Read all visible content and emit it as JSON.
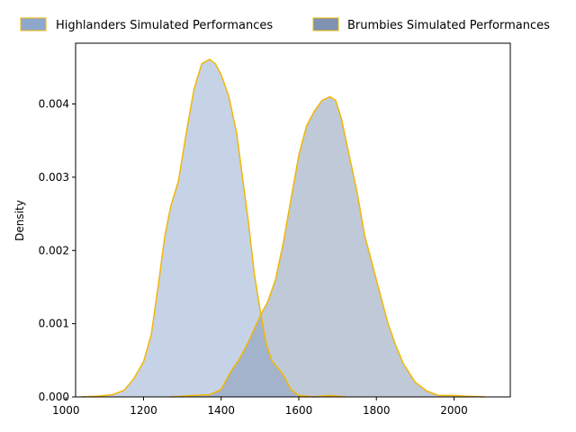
{
  "chart_data": {
    "type": "area",
    "subtype": "kde-density",
    "xlabel": "",
    "ylabel": "Density",
    "xlim": [
      1025,
      2145
    ],
    "ylim": [
      0,
      0.00483
    ],
    "xticks": [
      1000,
      1200,
      1400,
      1600,
      1800,
      2000
    ],
    "yticks": [
      0.0,
      0.001,
      0.002,
      0.003,
      0.004
    ],
    "ytick_labels": [
      "0.000",
      "0.001",
      "0.002",
      "0.003",
      "0.004"
    ],
    "legend_position": "top, above plot, two columns",
    "line_color": "#f2b705",
    "series": [
      {
        "name": "Highlanders Simulated Performances",
        "fill": "#8ea8cd",
        "fill_opacity": 0.5,
        "points": [
          [
            1040,
            0.0
          ],
          [
            1080,
            1e-05
          ],
          [
            1120,
            3e-05
          ],
          [
            1150,
            9e-05
          ],
          [
            1175,
            0.00025
          ],
          [
            1200,
            0.00048
          ],
          [
            1220,
            0.00085
          ],
          [
            1240,
            0.0016
          ],
          [
            1255,
            0.0022
          ],
          [
            1270,
            0.0026
          ],
          [
            1290,
            0.00295
          ],
          [
            1310,
            0.0036
          ],
          [
            1330,
            0.0042
          ],
          [
            1350,
            0.00455
          ],
          [
            1370,
            0.00461
          ],
          [
            1385,
            0.00455
          ],
          [
            1400,
            0.0044
          ],
          [
            1420,
            0.0041
          ],
          [
            1440,
            0.0036
          ],
          [
            1455,
            0.003
          ],
          [
            1470,
            0.0024
          ],
          [
            1485,
            0.0017
          ],
          [
            1500,
            0.0012
          ],
          [
            1515,
            0.00075
          ],
          [
            1530,
            0.0005
          ],
          [
            1545,
            0.0004
          ],
          [
            1560,
            0.0003
          ],
          [
            1580,
            0.0001
          ],
          [
            1600,
            2e-05
          ],
          [
            1640,
            0.0
          ],
          [
            1680,
            2e-05
          ],
          [
            1720,
            0.0
          ]
        ]
      },
      {
        "name": "Brumbies Simulated Performances",
        "fill": "#7f93b0",
        "fill_opacity": 0.5,
        "points": [
          [
            1270,
            0.0
          ],
          [
            1330,
            2e-05
          ],
          [
            1370,
            3e-05
          ],
          [
            1400,
            0.0001
          ],
          [
            1425,
            0.00035
          ],
          [
            1445,
            0.0005
          ],
          [
            1470,
            0.00075
          ],
          [
            1500,
            0.0011
          ],
          [
            1520,
            0.0013
          ],
          [
            1540,
            0.0016
          ],
          [
            1560,
            0.0021
          ],
          [
            1580,
            0.0027
          ],
          [
            1600,
            0.0033
          ],
          [
            1620,
            0.0037
          ],
          [
            1640,
            0.0039
          ],
          [
            1660,
            0.00405
          ],
          [
            1680,
            0.0041
          ],
          [
            1695,
            0.00405
          ],
          [
            1710,
            0.0038
          ],
          [
            1730,
            0.0033
          ],
          [
            1750,
            0.0028
          ],
          [
            1770,
            0.0022
          ],
          [
            1790,
            0.0018
          ],
          [
            1810,
            0.0014
          ],
          [
            1830,
            0.001
          ],
          [
            1850,
            0.0007
          ],
          [
            1870,
            0.00045
          ],
          [
            1900,
            0.0002
          ],
          [
            1930,
            8e-05
          ],
          [
            1960,
            2e-05
          ],
          [
            2000,
            2e-05
          ],
          [
            2030,
            1e-05
          ],
          [
            2080,
            0.0
          ]
        ]
      }
    ]
  }
}
